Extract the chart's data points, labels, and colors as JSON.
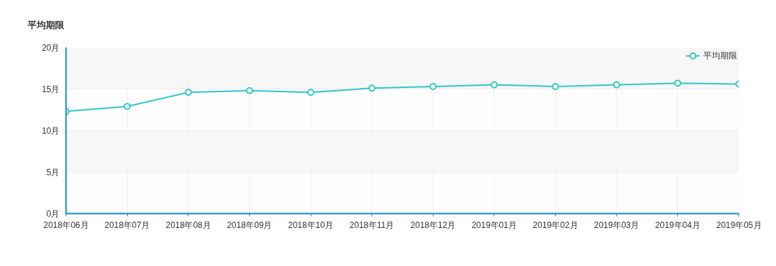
{
  "chart_data": {
    "type": "line",
    "title": "平均期限",
    "categories": [
      "2018年06月",
      "2018年07月",
      "2018年08月",
      "2018年09月",
      "2018年10月",
      "2018年11月",
      "2018年12月",
      "2019年01月",
      "2019年02月",
      "2019年03月",
      "2019年04月",
      "2019年05月"
    ],
    "series": [
      {
        "name": "平均期限",
        "color": "#2ec7c9",
        "values": [
          12.3,
          12.9,
          14.6,
          14.8,
          14.6,
          15.1,
          15.3,
          15.5,
          15.3,
          15.5,
          15.7,
          15.6
        ]
      }
    ],
    "ylim": [
      0,
      20
    ],
    "yticks": [
      {
        "value": 0,
        "label": "0月"
      },
      {
        "value": 5,
        "label": "5月"
      },
      {
        "value": 10,
        "label": "10月"
      },
      {
        "value": 15,
        "label": "15月"
      },
      {
        "value": 20,
        "label": "20月"
      }
    ],
    "grid": true,
    "legend": "top right",
    "marker": "circle",
    "line_style": "solid"
  }
}
